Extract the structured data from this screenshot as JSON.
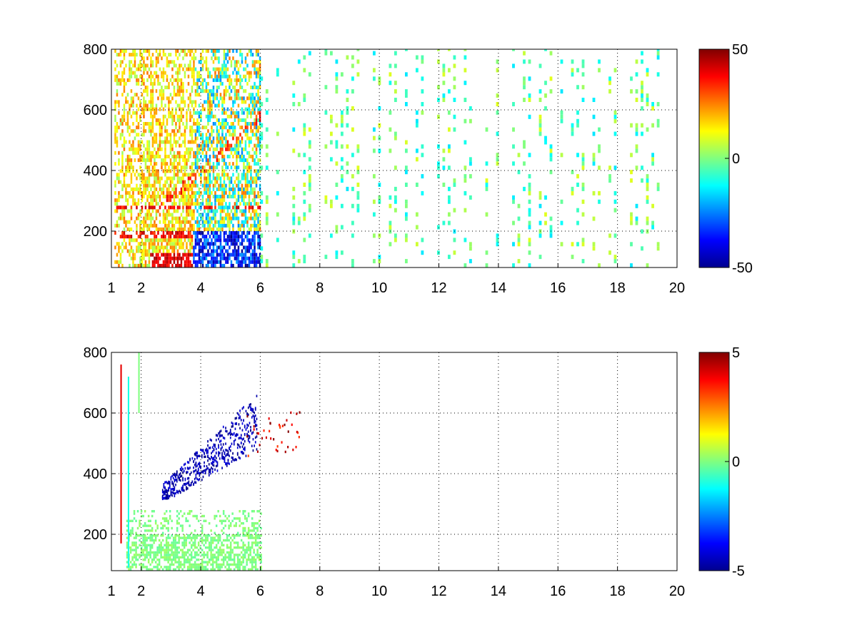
{
  "chart_data": [
    {
      "type": "heatmap",
      "title": "",
      "xlabel": "",
      "ylabel": "",
      "x_ticks": [
        "1",
        "2",
        "4",
        "6",
        "8",
        "10",
        "12",
        "14",
        "16",
        "18",
        "20"
      ],
      "x_tick_values": [
        1,
        2,
        4,
        6,
        8,
        10,
        12,
        14,
        16,
        18,
        20
      ],
      "y_ticks": [
        "200",
        "400",
        "600",
        "800"
      ],
      "y_tick_values": [
        200,
        400,
        600,
        800
      ],
      "xlim": [
        1,
        20
      ],
      "ylim": [
        80,
        800
      ],
      "grid": true,
      "colormap": "jet",
      "colorbar": {
        "range": [
          -50,
          50
        ],
        "ticks": [
          "50",
          "0",
          "-50"
        ],
        "tick_values": [
          50,
          0,
          -50
        ],
        "placement": "right"
      },
      "features": [
        {
          "region_x": [
            1.1,
            6.0
          ],
          "region_y": [
            80,
            800
          ],
          "description_values": "dense values mostly 0 to 40, strong positive bands near y 180 and 270"
        },
        {
          "region_x": [
            3.8,
            6.0
          ],
          "region_y": [
            80,
            650
          ],
          "description_values": "mixed negative values down to -50 near y 80-200"
        },
        {
          "region_x": [
            6.0,
            20.0
          ],
          "region_y": [
            80,
            800
          ],
          "description_values": "sparse columns of values between -15 and 10"
        }
      ]
    },
    {
      "type": "heatmap",
      "title": "",
      "xlabel": "",
      "ylabel": "",
      "x_ticks": [
        "1",
        "2",
        "4",
        "6",
        "8",
        "10",
        "12",
        "14",
        "16",
        "18",
        "20"
      ],
      "x_tick_values": [
        1,
        2,
        4,
        6,
        8,
        10,
        12,
        14,
        16,
        18,
        20
      ],
      "y_ticks": [
        "200",
        "400",
        "600",
        "800"
      ],
      "y_tick_values": [
        200,
        400,
        600,
        800
      ],
      "xlim": [
        1,
        20
      ],
      "ylim": [
        80,
        800
      ],
      "grid": true,
      "colormap": "jet",
      "colorbar": {
        "range": [
          -5,
          5
        ],
        "ticks": [
          "5",
          "0",
          "-5"
        ],
        "tick_values": [
          5,
          0,
          -5
        ],
        "placement": "right"
      },
      "features": [
        {
          "region_x": [
            1.5,
            6.0
          ],
          "region_y": [
            80,
            280
          ],
          "description_values": "near 0 (light green) dense block"
        },
        {
          "region_x": [
            2.7,
            5.9
          ],
          "region_y": [
            300,
            620
          ],
          "description_values": "strongly negative (about -5) diagonal band rising to the right"
        },
        {
          "region_x": [
            5.5,
            7.3
          ],
          "region_y": [
            450,
            600
          ],
          "description_values": "isolated positive values up to 5"
        }
      ]
    }
  ]
}
